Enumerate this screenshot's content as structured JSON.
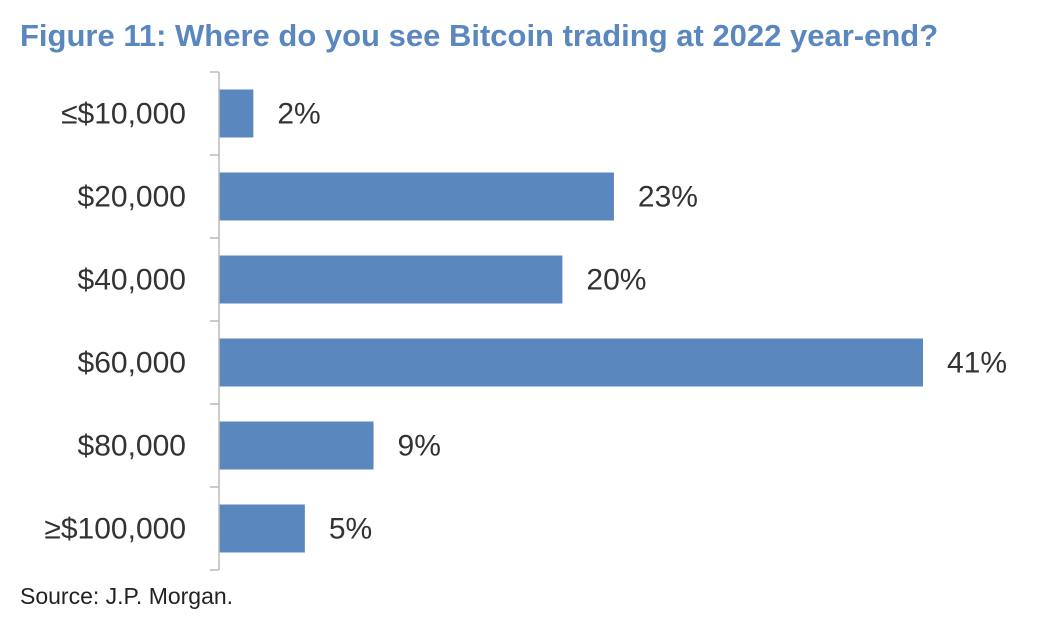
{
  "chart_data": {
    "type": "bar",
    "orientation": "horizontal",
    "title": "Figure 11: Where do you see Bitcoin trading at 2022 year-end?",
    "categories": [
      "≤$10,000",
      "$20,000",
      "$40,000",
      "$60,000",
      "$80,000",
      "≥$100,000"
    ],
    "values": [
      2,
      23,
      20,
      41,
      9,
      5
    ],
    "value_labels": [
      "2%",
      "23%",
      "20%",
      "41%",
      "9%",
      "5%"
    ],
    "color": "#5b87bf",
    "source": "Source: J.P. Morgan."
  }
}
